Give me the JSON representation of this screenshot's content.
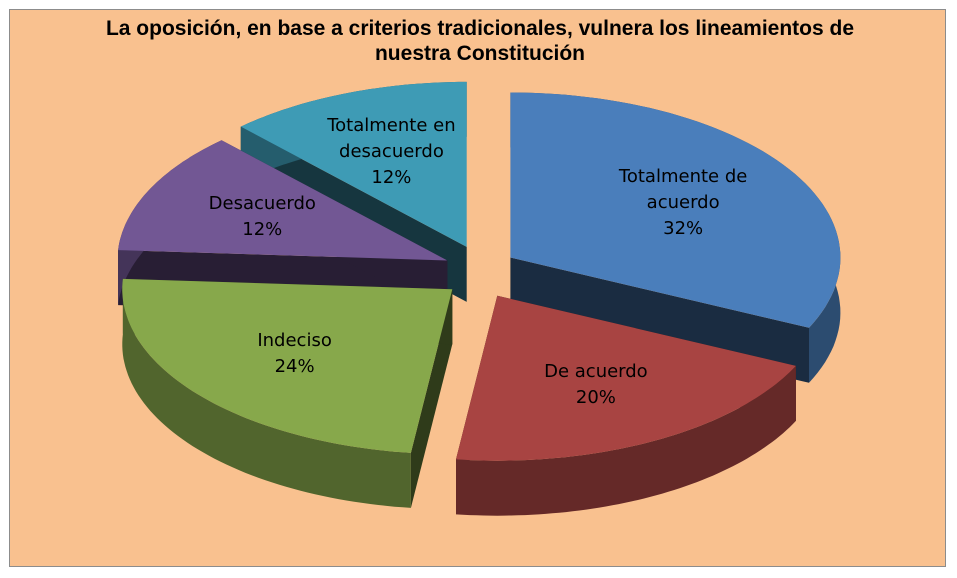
{
  "chart_data": {
    "type": "pie3d",
    "title": "La oposición, en base a criterios tradicionales, vulnera los lineamientos de nuestra Constitución",
    "categories": [
      "Totalmente de acuerdo",
      "De acuerdo",
      "Indeciso",
      "Desacuerdo",
      "Totalmente en desacuerdo"
    ],
    "values": [
      32,
      20,
      24,
      12,
      12
    ],
    "value_labels": [
      "32%",
      "20%",
      "24%",
      "12%",
      "12%"
    ],
    "colors": [
      "#4a7ebb",
      "#a84442",
      "#87a84b",
      "#725794",
      "#3e9bb5"
    ]
  }
}
